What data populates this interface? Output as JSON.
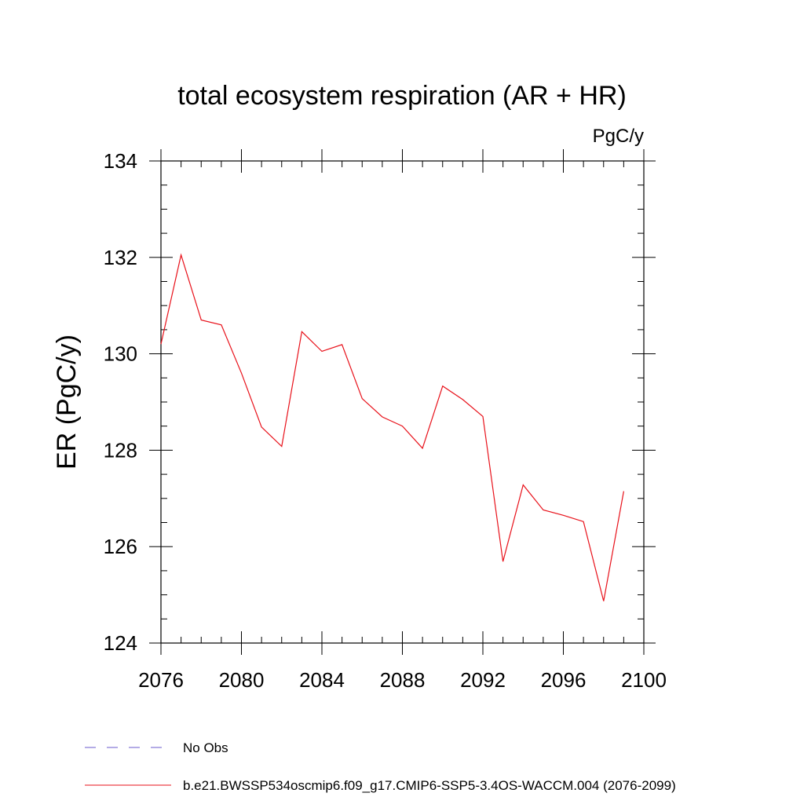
{
  "chart_data": {
    "type": "line",
    "title": "total ecosystem respiration (AR + HR)",
    "units_label": "PgC/y",
    "ylabel": "ER  (PgC/y)",
    "xlabel": "",
    "xlim": [
      2076,
      2100
    ],
    "ylim": [
      124,
      134
    ],
    "x_ticks": [
      2076,
      2080,
      2084,
      2088,
      2092,
      2096,
      2100
    ],
    "y_ticks": [
      124,
      126,
      128,
      130,
      132,
      134
    ],
    "grid": false,
    "legend_position": "bottom-left",
    "series": [
      {
        "name": "b.e21.BWSSP534oscmip6.f09_g17.CMIP6-SSP5-3.4OS-WACCM.004 (2076-2099)",
        "color": "#e8111a",
        "style": "solid",
        "x": [
          2076,
          2077,
          2078,
          2079,
          2080,
          2081,
          2082,
          2083,
          2084,
          2085,
          2086,
          2087,
          2088,
          2089,
          2090,
          2091,
          2092,
          2093,
          2094,
          2095,
          2096,
          2097,
          2098,
          2099
        ],
        "values": [
          130.2,
          132.05,
          130.7,
          130.6,
          129.6,
          128.48,
          128.08,
          130.46,
          130.05,
          130.19,
          129.07,
          128.69,
          128.5,
          128.04,
          129.33,
          129.05,
          128.7,
          125.69,
          127.28,
          126.76,
          126.65,
          126.52,
          124.87,
          127.15
        ]
      }
    ],
    "legend": [
      {
        "label": "No Obs",
        "color": "#6a5acd",
        "style": "dashed"
      },
      {
        "label": "b.e21.BWSSP534oscmip6.f09_g17.CMIP6-SSP5-3.4OS-WACCM.004 (2076-2099)",
        "color": "#e8111a",
        "style": "solid"
      }
    ]
  }
}
